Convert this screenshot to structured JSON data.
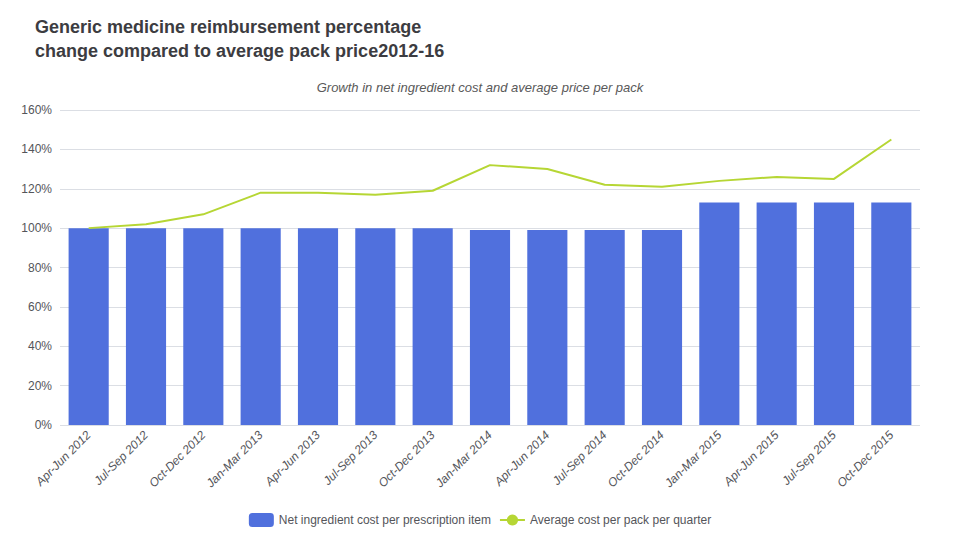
{
  "chart_data": {
    "type": "bar",
    "title": "Generic medicine reimbursement percentage\nchange compared to average pack price2012-16",
    "subtitle": "Growth in net ingredient cost and average price per pack",
    "categories": [
      "Apr-Jun 2012",
      "Jul-Sep 2012",
      "Oct-Dec 2012",
      "Jan-Mar 2013",
      "Apr-Jun 2013",
      "Jul-Sep 2013",
      "Oct-Dec 2013",
      "Jan-Mar 2014",
      "Apr-Jun 2014",
      "Jul-Sep 2014",
      "Oct-Dec 2014",
      "Jan-Mar 2015",
      "Apr-Jun 2015",
      "Jul-Sep 2015",
      "Oct-Dec 2015"
    ],
    "series": [
      {
        "name": "Net ingredient cost per prescription item",
        "type": "bar",
        "values": [
          100,
          100,
          100,
          100,
          100,
          100,
          100,
          99,
          99,
          99,
          99,
          113,
          113,
          113,
          113
        ]
      },
      {
        "name": "Average cost per pack per quarter",
        "type": "line",
        "marker": "none",
        "values": [
          100,
          102,
          107,
          118,
          118,
          117,
          119,
          132,
          130,
          122,
          121,
          124,
          126,
          125,
          145
        ]
      }
    ],
    "ylim": [
      0,
      160
    ],
    "yticks": [
      {
        "value": 0,
        "label": "0%"
      },
      {
        "value": 20,
        "label": "20%"
      },
      {
        "value": 40,
        "label": "40%"
      },
      {
        "value": 60,
        "label": "60%"
      },
      {
        "value": 80,
        "label": "80%"
      },
      {
        "value": 100,
        "label": "100%"
      },
      {
        "value": 120,
        "label": "120%"
      },
      {
        "value": 140,
        "label": "140%"
      },
      {
        "value": 160,
        "label": "160%"
      }
    ],
    "grid": true,
    "legend": "bottom"
  }
}
